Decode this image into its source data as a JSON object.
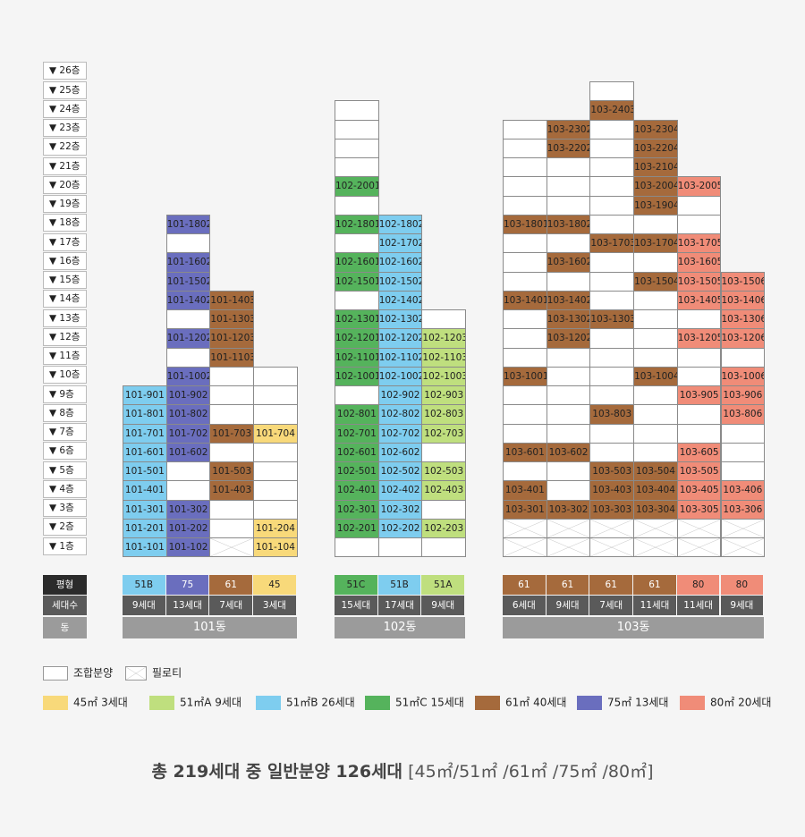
{
  "colors": {
    "45": "#f8d97a",
    "51A": "#bfdf7e",
    "51B": "#7ecdef",
    "51C": "#55b35c",
    "61": "#a56a3c",
    "75": "#6a6ebe",
    "80": "#f08c78",
    "none": "#ffffff"
  },
  "floor_labels": [
    "▼ 1층",
    "▼ 2층",
    "▼ 3층",
    "▼ 4층",
    "▼ 5층",
    "▼ 6층",
    "▼ 7층",
    "▼ 8층",
    "▼ 9층",
    "▼ 10층",
    "▼ 11층",
    "▼ 12층",
    "▼ 13층",
    "▼ 14층",
    "▼ 15층",
    "▼ 16층",
    "▼ 17층",
    "▼ 18층",
    "▼ 19층",
    "▼ 20층",
    "▼ 21층",
    "▼ 22층",
    "▼ 23층",
    "▼ 24층",
    "▼ 25층",
    "▼ 26층"
  ],
  "headers": {
    "type": "평형",
    "count": "세대수",
    "building": "동"
  },
  "buildings": [
    {
      "name": "101동",
      "columns": [
        {
          "type": "51B",
          "count": "9세대",
          "color": "51B",
          "max_floor": 9,
          "piloti": [],
          "units": {
            "1": "101-101",
            "2": "101-201",
            "3": "101-301",
            "4": "101-401",
            "5": "101-501",
            "6": "101-601",
            "7": "101-701",
            "8": "101-801",
            "9": "101-901"
          }
        },
        {
          "type": "75",
          "count": "13세대",
          "color": "75",
          "max_floor": 18,
          "piloti": [],
          "units": {
            "1": "101-102",
            "2": "101-202",
            "3": "101-302",
            "6": "101-602",
            "7": "101-702",
            "8": "101-802",
            "9": "101-902",
            "10": "101-1002",
            "12": "101-1202",
            "14": "101-1402",
            "15": "101-1502",
            "16": "101-1602",
            "18": "101-1802"
          }
        },
        {
          "type": "61",
          "count": "7세대",
          "color": "61",
          "max_floor": 14,
          "piloti": [
            1
          ],
          "units": {
            "4": "101-403",
            "5": "101-503",
            "7": "101-703",
            "11": "101-1103",
            "12": "101-1203",
            "13": "101-1303",
            "14": "101-1403"
          }
        },
        {
          "type": "45",
          "count": "3세대",
          "color": "45",
          "max_floor": 10,
          "piloti": [],
          "units": {
            "1": "101-104",
            "2": "101-204",
            "7": "101-704"
          }
        }
      ]
    },
    {
      "name": "102동",
      "columns": [
        {
          "type": "51C",
          "count": "15세대",
          "color": "51C",
          "max_floor": 24,
          "piloti": [],
          "units": {
            "2": "102-201",
            "3": "102-301",
            "4": "102-401",
            "5": "102-501",
            "6": "102-601",
            "7": "102-701",
            "8": "102-801",
            "10": "102-1001",
            "11": "102-1101",
            "12": "102-1201",
            "13": "102-1301",
            "15": "102-1501",
            "16": "102-1601",
            "18": "102-1801",
            "20": "102-2001"
          }
        },
        {
          "type": "51B",
          "count": "17세대",
          "color": "51B",
          "max_floor": 18,
          "piloti": [],
          "units": {
            "2": "102-202",
            "3": "102-302",
            "4": "102-402",
            "5": "102-502",
            "6": "102-602",
            "7": "102-702",
            "8": "102-802",
            "9": "102-902",
            "10": "102-1002",
            "11": "102-1102",
            "12": "102-1202",
            "13": "102-1302",
            "14": "102-1402",
            "15": "102-1502",
            "16": "102-1602",
            "17": "102-1702",
            "18": "102-1802"
          }
        },
        {
          "type": "51A",
          "count": "9세대",
          "color": "51A",
          "max_floor": 13,
          "piloti": [],
          "units": {
            "2": "102-203",
            "4": "102-403",
            "5": "102-503",
            "7": "102-703",
            "8": "102-803",
            "9": "102-903",
            "10": "102-1003",
            "11": "102-1103",
            "12": "102-1203"
          }
        }
      ]
    },
    {
      "name": "103동",
      "columns": [
        {
          "type": "61",
          "count": "6세대",
          "color": "61",
          "max_floor": 23,
          "piloti": [
            1,
            2
          ],
          "units": {
            "3": "103-301",
            "4": "103-401",
            "6": "103-601",
            "10": "103-1001",
            "14": "103-1401",
            "18": "103-1801"
          }
        },
        {
          "type": "61",
          "count": "9세대",
          "color": "61",
          "max_floor": 23,
          "piloti": [
            1,
            2
          ],
          "units": {
            "3": "103-302",
            "6": "103-602",
            "12": "103-1202",
            "13": "103-1302",
            "14": "103-1402",
            "16": "103-1602",
            "18": "103-1802",
            "22": "103-2202",
            "23": "103-2302"
          }
        },
        {
          "type": "61",
          "count": "7세대",
          "color": "61",
          "max_floor": 25,
          "piloti": [
            1,
            2
          ],
          "units": {
            "3": "103-303",
            "4": "103-403",
            "5": "103-503",
            "8": "103-803",
            "13": "103-1303",
            "17": "103-1703",
            "24": "103-2403"
          }
        },
        {
          "type": "61",
          "count": "11세대",
          "color": "61",
          "max_floor": 23,
          "piloti": [
            1,
            2
          ],
          "units": {
            "3": "103-304",
            "4": "103-404",
            "5": "103-504",
            "10": "103-1004",
            "15": "103-1504",
            "17": "103-1704",
            "19": "103-1904",
            "20": "103-2004",
            "21": "103-2104",
            "22": "103-2204",
            "23": "103-2304"
          }
        },
        {
          "type": "80",
          "count": "11세대",
          "color": "80",
          "max_floor": 20,
          "piloti": [
            1,
            2
          ],
          "units": {
            "3": "103-305",
            "4": "103-405",
            "5": "103-505",
            "6": "103-605",
            "9": "103-905",
            "12": "103-1205",
            "14": "103-1405",
            "15": "103-1505",
            "16": "103-1605",
            "17": "103-1705",
            "20": "103-2005"
          }
        },
        {
          "type": "80",
          "count": "9세대",
          "color": "80",
          "max_floor": 15,
          "piloti": [
            1,
            2
          ],
          "units": {
            "3": "103-306",
            "4": "103-406",
            "8": "103-806",
            "9": "103-906",
            "10": "103-1006",
            "12": "103-1206",
            "13": "103-1306",
            "14": "103-1406",
            "15": "103-1506"
          }
        }
      ]
    }
  ],
  "legend": [
    {
      "key": "none",
      "label": "조합분양"
    },
    {
      "key": "piloti",
      "label": "필로티"
    },
    {
      "key": "45",
      "label": "45㎡  3세대"
    },
    {
      "key": "51A",
      "label": "51㎡A  9세대"
    },
    {
      "key": "51B",
      "label": "51㎡B  26세대"
    },
    {
      "key": "51C",
      "label": "51㎡C  15세대"
    },
    {
      "key": "61",
      "label": "61㎡  40세대"
    },
    {
      "key": "75",
      "label": "75㎡  13세대"
    },
    {
      "key": "80",
      "label": "80㎡  20세대"
    }
  ],
  "summary": {
    "lead": "총 219세대 중 일반분양 126세대",
    "tail": " [45㎡/51㎡ /61㎡ /75㎡ /80㎡]"
  }
}
